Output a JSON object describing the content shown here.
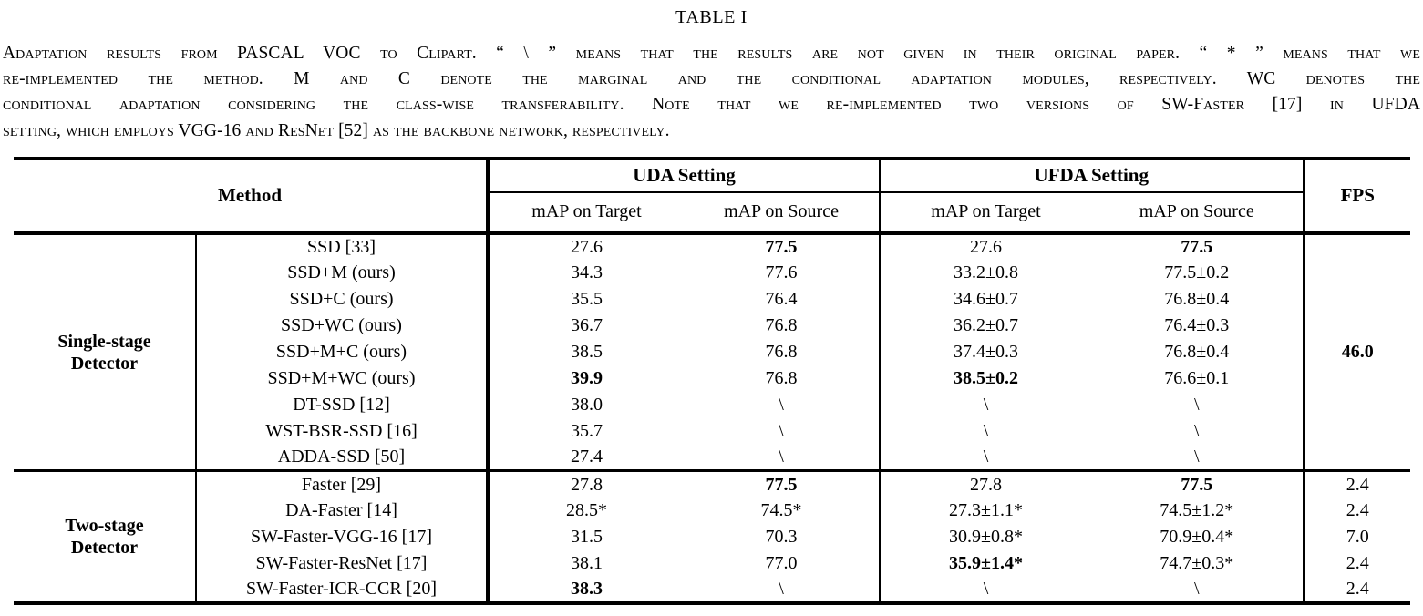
{
  "page": {
    "title": "TABLE I",
    "caption_lines": [
      "Adaptation results from PASCAL VOC to Clipart. “ \\ ” means that the results are not given in their original paper. “ * ” means that we",
      "re-implemented the method. M and C denote the marginal and the conditional adaptation modules, respectively. WC denotes the",
      "conditional adaptation considering the class-wise transferability. Note that we re-implemented two versions of SW-Faster [17] in UFDA",
      "setting, which employs VGG-16 and ResNet [52] as the backbone network, respectively."
    ]
  },
  "table": {
    "headers": {
      "method": "Method",
      "uda_setting": "UDA Setting",
      "ufda_setting": "UFDA Setting",
      "fps": "FPS",
      "map_on_target": "mAP on Target",
      "map_on_source": "mAP on Source"
    },
    "sections": [
      {
        "group_line1": "Single-stage",
        "group_line2": "Detector",
        "fps": "46.0",
        "rows": [
          {
            "method": "SSD [33]",
            "uda_target": "27.6",
            "uda_source": "77.5",
            "ufda_target": "27.6",
            "ufda_source": "77.5"
          },
          {
            "method": "SSD+M (ours)",
            "uda_target": "34.3",
            "uda_source": "77.6",
            "ufda_target": "33.2±0.8",
            "ufda_source": "77.5±0.2"
          },
          {
            "method": "SSD+C (ours)",
            "uda_target": "35.5",
            "uda_source": "76.4",
            "ufda_target": "34.6±0.7",
            "ufda_source": "76.8±0.4"
          },
          {
            "method": "SSD+WC (ours)",
            "uda_target": "36.7",
            "uda_source": "76.8",
            "ufda_target": "36.2±0.7",
            "ufda_source": "76.4±0.3"
          },
          {
            "method": "SSD+M+C (ours)",
            "uda_target": "38.5",
            "uda_source": "76.8",
            "ufda_target": "37.4±0.3",
            "ufda_source": "76.8±0.4"
          },
          {
            "method": "SSD+M+WC (ours)",
            "uda_target": "39.9",
            "uda_source": "76.8",
            "ufda_target": "38.5±0.2",
            "ufda_source": "76.6±0.1"
          },
          {
            "method": "DT-SSD [12]",
            "uda_target": "38.0",
            "uda_source": "\\",
            "ufda_target": "\\",
            "ufda_source": "\\"
          },
          {
            "method": "WST-BSR-SSD [16]",
            "uda_target": "35.7",
            "uda_source": "\\",
            "ufda_target": "\\",
            "ufda_source": "\\"
          },
          {
            "method": "ADDA-SSD [50]",
            "uda_target": "27.4",
            "uda_source": "\\",
            "ufda_target": "\\",
            "ufda_source": "\\"
          }
        ]
      },
      {
        "group_line1": "Two-stage",
        "group_line2": "Detector",
        "rows": [
          {
            "method": "Faster [29]",
            "uda_target": "27.8",
            "uda_source": "77.5",
            "ufda_target": "27.8",
            "ufda_source": "77.5",
            "fps": "2.4"
          },
          {
            "method": "DA-Faster [14]",
            "uda_target": "28.5*",
            "uda_source": "74.5*",
            "ufda_target": "27.3±1.1*",
            "ufda_source": "74.5±1.2*",
            "fps": "2.4"
          },
          {
            "method": "SW-Faster-VGG-16 [17]",
            "uda_target": "31.5",
            "uda_source": "70.3",
            "ufda_target": "30.9±0.8*",
            "ufda_source": "70.9±0.4*",
            "fps": "7.0"
          },
          {
            "method": "SW-Faster-ResNet [17]",
            "uda_target": "38.1",
            "uda_source": "77.0",
            "ufda_target": "35.9±1.4*",
            "ufda_source": "74.7±0.3*",
            "fps": "2.4"
          },
          {
            "method": "SW-Faster-ICR-CCR [20]",
            "uda_target": "38.3",
            "uda_source": "\\",
            "ufda_target": "\\",
            "ufda_source": "\\",
            "fps": "2.4"
          }
        ]
      }
    ]
  }
}
